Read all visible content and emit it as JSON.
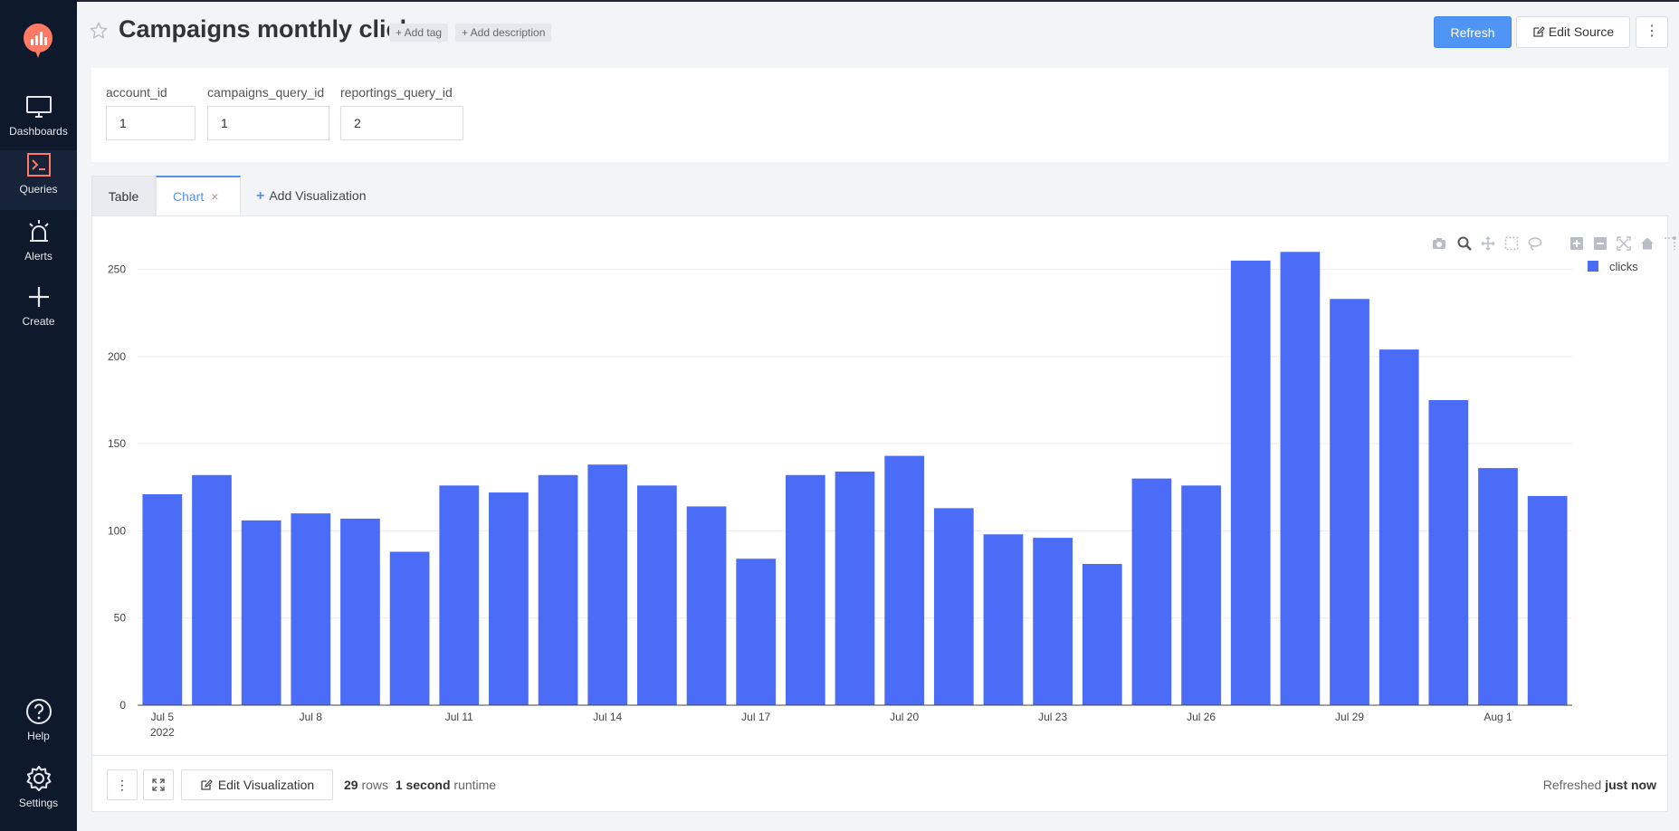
{
  "sidebar": {
    "items": [
      {
        "label": "Dashboards",
        "icon": "monitor-icon"
      },
      {
        "label": "Queries",
        "icon": "terminal-icon"
      },
      {
        "label": "Alerts",
        "icon": "alarm-icon"
      },
      {
        "label": "Create",
        "icon": "plus-icon"
      },
      {
        "label": "Help",
        "icon": "help-icon"
      },
      {
        "label": "Settings",
        "icon": "gear-icon"
      }
    ]
  },
  "header": {
    "title": "Campaigns monthly click",
    "add_tag": "+ Add tag",
    "add_description": "+ Add description",
    "refresh_label": "Refresh",
    "edit_source_label": "Edit Source",
    "more_label": "⋮"
  },
  "params": [
    {
      "label": "account_id",
      "value": "1"
    },
    {
      "label": "campaigns_query_id",
      "value": "1"
    },
    {
      "label": "reportings_query_id",
      "value": "2"
    }
  ],
  "tabs": {
    "table": "Table",
    "chart": "Chart",
    "chart_close": "×",
    "add_visualization": "Add Visualization"
  },
  "legend": {
    "label": "clicks"
  },
  "chart_data": {
    "type": "bar",
    "x": [
      "2022-07-05",
      "2022-07-06",
      "2022-07-07",
      "2022-07-08",
      "2022-07-09",
      "2022-07-10",
      "2022-07-11",
      "2022-07-12",
      "2022-07-13",
      "2022-07-14",
      "2022-07-15",
      "2022-07-16",
      "2022-07-17",
      "2022-07-18",
      "2022-07-19",
      "2022-07-20",
      "2022-07-21",
      "2022-07-22",
      "2022-07-23",
      "2022-07-24",
      "2022-07-25",
      "2022-07-26",
      "2022-07-27",
      "2022-07-28",
      "2022-07-29",
      "2022-07-30",
      "2022-07-31",
      "2022-08-01",
      "2022-08-02"
    ],
    "series": [
      {
        "name": "clicks",
        "color": "#4a6cf7",
        "values": [
          121,
          132,
          106,
          110,
          107,
          88,
          126,
          122,
          132,
          138,
          126,
          114,
          84,
          132,
          134,
          143,
          113,
          98,
          96,
          81,
          130,
          126,
          255,
          260,
          233,
          204,
          175,
          136,
          120
        ]
      }
    ],
    "ylim": [
      0,
      270
    ],
    "yticks": [
      0,
      50,
      100,
      150,
      200,
      250
    ],
    "xtick_labels": [
      {
        "index": 0,
        "label": "Jul 5",
        "sub": "2022"
      },
      {
        "index": 3,
        "label": "Jul 8"
      },
      {
        "index": 6,
        "label": "Jul 11"
      },
      {
        "index": 9,
        "label": "Jul 14"
      },
      {
        "index": 12,
        "label": "Jul 17"
      },
      {
        "index": 15,
        "label": "Jul 20"
      },
      {
        "index": 18,
        "label": "Jul 23"
      },
      {
        "index": 21,
        "label": "Jul 26"
      },
      {
        "index": 24,
        "label": "Jul 29"
      },
      {
        "index": 27,
        "label": "Aug 1"
      }
    ],
    "grid": true,
    "legend_position": "top-right"
  },
  "footer": {
    "more": "⋮",
    "edit_visualization": "Edit Visualization",
    "rows_count": "29",
    "rows_label": "rows",
    "runtime_value": "1 second",
    "runtime_label": "runtime",
    "refreshed_label": "Refreshed",
    "refreshed_value": "just now"
  }
}
